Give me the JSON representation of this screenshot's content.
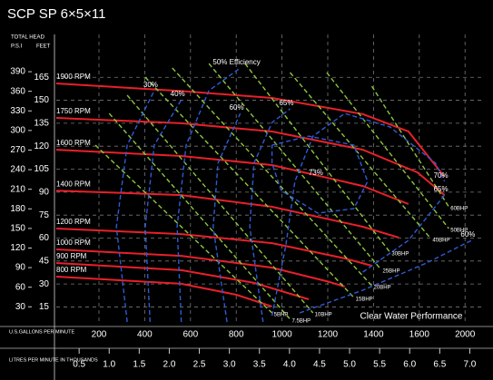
{
  "chart_data": {
    "type": "line",
    "title": "SCP SP 6×5×11",
    "y_header": "TOTAL HEAD",
    "y2_label": "P.S.I",
    "y_label": "FEET",
    "gpm_label": "U.S.GALLONS PER MINUTE",
    "x_label": "LITRES PER MINUTE IN THOUSANDS",
    "annotation": "Clear Water Performance",
    "gpm_ticks": [
      200,
      400,
      600,
      800,
      1000,
      1200,
      1400,
      1600,
      2000
    ],
    "xlim": [
      0.12,
      7.19
    ],
    "xticks": [
      0.5,
      {
        "value": 1,
        "label": "1.0"
      },
      1.5,
      {
        "value": 2,
        "label": "2.0"
      },
      2.5,
      {
        "value": 3,
        "label": "3.0"
      },
      3.5,
      {
        "value": 4,
        "label": "4.0"
      },
      4.5,
      {
        "value": 5,
        "label": "5.0"
      },
      5.5,
      {
        "value": 6,
        "label": "6.0"
      },
      6.5,
      {
        "value": 7,
        "label": "7.0"
      }
    ],
    "ylim": [
      4,
      193
    ],
    "yticks": [
      15,
      30,
      45,
      60,
      75,
      90,
      105,
      120,
      135,
      150,
      165
    ],
    "y2lim": [
      4,
      447
    ],
    "y2ticks": [
      30,
      60,
      90,
      120,
      150,
      180,
      210,
      240,
      270,
      300,
      330,
      360,
      390
    ],
    "grid": true,
    "series": [
      {
        "name": "1900 RPM",
        "color": "#e8202a",
        "style": "solid",
        "label_position": "start",
        "x": [
          0.12,
          2.2,
          3.71,
          5.22,
          5.98,
          6.58
        ],
        "values": [
          161,
          156,
          151.5,
          141,
          129.6,
          100
        ]
      },
      {
        "name": "1750 RPM",
        "color": "#e8202a",
        "style": "solid",
        "label_position": "start",
        "x": [
          0.12,
          2.2,
          3.71,
          5.22,
          6.13,
          6.58
        ],
        "values": [
          138.5,
          135,
          129.6,
          117.7,
          102.9,
          88.1
        ]
      },
      {
        "name": "1600 RPM",
        "color": "#e8202a",
        "style": "solid",
        "label_position": "start",
        "x": [
          0.12,
          2.2,
          3.71,
          5.22,
          5.98
        ],
        "values": [
          117.7,
          113.6,
          107.7,
          94,
          82.2
        ]
      },
      {
        "name": "1400 RPM",
        "color": "#e8202a",
        "style": "solid",
        "label_position": "start",
        "x": [
          0.12,
          2.2,
          3.71,
          5.22,
          5.82
        ],
        "values": [
          91,
          88.1,
          80.4,
          67.4,
          60.3
        ]
      },
      {
        "name": "1200 RPM",
        "color": "#e8202a",
        "style": "solid",
        "label_position": "start",
        "x": [
          0.12,
          2.2,
          3.71,
          4.92,
          5.37
        ],
        "values": [
          66.2,
          62.6,
          56.7,
          46.7,
          41.9
        ]
      },
      {
        "name": "1000 RPM",
        "color": "#e8202a",
        "style": "solid",
        "label_position": "start",
        "x": [
          0.12,
          2.2,
          3.71,
          4.62,
          4.92
        ],
        "values": [
          52.6,
          48.4,
          40.7,
          31.8,
          28.3
        ]
      },
      {
        "name": "900 RPM",
        "color": "#e8202a",
        "style": "solid",
        "label_position": "start",
        "x": [
          0.12,
          2.2,
          3.41,
          4.32
        ],
        "values": [
          43.7,
          39,
          30.7,
          20
        ]
      },
      {
        "name": "800 RPM",
        "color": "#e8202a",
        "style": "solid",
        "label_position": "start",
        "x": [
          0.12,
          2.2,
          3.11,
          3.71
        ],
        "values": [
          34.8,
          30.1,
          23,
          15.3
        ]
      },
      {
        "name": "5BHP",
        "color": "#8dc63f",
        "style": "dashed",
        "label_position": "end",
        "x": [
          0.77,
          3.71
        ],
        "values": [
          120.7,
          11.1
        ]
      },
      {
        "name": "7.5BHP",
        "color": "#8dc63f",
        "style": "dashed",
        "label_position": "end",
        "x": [
          1.0,
          4.01
        ],
        "values": [
          141.4,
          7.0
        ]
      },
      {
        "name": "10BHP",
        "color": "#8dc63f",
        "style": "dashed",
        "label_position": "end",
        "x": [
          1.3,
          4.39
        ],
        "values": [
          153.3,
          11.1
        ]
      },
      {
        "name": "15BHP",
        "color": "#8dc63f",
        "style": "dashed",
        "label_position": "end",
        "x": [
          1.6,
          5.07
        ],
        "values": [
          165.1,
          21.2
        ]
      },
      {
        "name": "20BHP",
        "color": "#8dc63f",
        "style": "dashed",
        "label_position": "end",
        "x": [
          2.05,
          5.37
        ],
        "values": [
          171.1,
          28.9
        ]
      },
      {
        "name": "25BHP",
        "color": "#8dc63f",
        "style": "dashed",
        "label_position": "end",
        "x": [
          2.66,
          5.52
        ],
        "values": [
          174,
          39.5
        ]
      },
      {
        "name": "30BHP",
        "color": "#8dc63f",
        "style": "dashed",
        "label_position": "end",
        "x": [
          3.26,
          5.67
        ],
        "values": [
          174,
          50.8
        ]
      },
      {
        "name": "40BHP",
        "color": "#8dc63f",
        "style": "dashed",
        "label_position": "end",
        "x": [
          4.01,
          6.35
        ],
        "values": [
          168.1,
          59.7
        ]
      },
      {
        "name": "50BHP",
        "color": "#8dc63f",
        "style": "dashed",
        "label_position": "end",
        "x": [
          4.62,
          6.65
        ],
        "values": [
          168.1,
          66.2
        ]
      },
      {
        "name": "60BHP",
        "color": "#8dc63f",
        "style": "dashed",
        "label_position": "end",
        "x": [
          5.37,
          6.65
        ],
        "values": [
          159.2,
          80.4
        ]
      },
      {
        "name": "30%",
        "color": "#2e5bd6",
        "style": "dashed",
        "label_position": "end",
        "x": [
          1.3,
          1.12,
          1.3,
          1.75
        ],
        "values": [
          5.2,
          67.4,
          120.7,
          156.3
        ]
      },
      {
        "name": "40%",
        "color": "#2e5bd6",
        "style": "dashed",
        "label_position": "end",
        "x": [
          1.68,
          1.6,
          1.75,
          2.2
        ],
        "values": [
          5.2,
          67.4,
          120.7,
          150.3
        ]
      },
      {
        "name": "50% Efficiency",
        "color": "#2e5bd6",
        "style": "dashed",
        "label_position": "end",
        "x": [
          2.2,
          2.13,
          2.28,
          2.66,
          3.18
        ],
        "values": [
          5.2,
          67.4,
          120.7,
          156.3,
          171.1
        ]
      },
      {
        "name": "60%",
        "color": "#2e5bd6",
        "style": "dashed",
        "label_position": "end",
        "x": [
          2.96,
          2.73,
          2.81,
          3.18,
          null,
          4.17,
          5.22,
          6.28,
          7.03
        ],
        "values": [
          5.2,
          67.4,
          108.9,
          141.4,
          null,
          11.1,
          25.9,
          43.7,
          58.5
        ]
      },
      {
        "name": "65%",
        "color": "#2e5bd6",
        "style": "dashed",
        "label_position": "end",
        "x": [
          3.56,
          3.34,
          3.41,
          3.71,
          4.01,
          null,
          5.22,
          5.98,
          6.58
        ],
        "values": [
          5.2,
          67.4,
          108.9,
          135.5,
          144.4,
          null,
          37.8,
          58.5,
          88.1
        ]
      },
      {
        "name": "70%",
        "color": "#2e5bd6",
        "style": "dashed",
        "label_position": "end",
        "x": [
          3.71,
          3.94,
          4.09,
          4.39,
          4.92,
          5.67,
          6.43,
          6.58
        ],
        "values": [
          9.3,
          55.5,
          97.0,
          126.6,
          141.4,
          132.6,
          108.9,
          97.0
        ]
      },
      {
        "name": "73%",
        "color": "#2e5bd6",
        "style": "dashed",
        "label_position": "center",
        "x": [
          3.71,
          4.32,
          5.07,
          5.3,
          5.07,
          4.47,
          3.86,
          3.71,
          3.71
        ],
        "values": [
          120.7,
          126.6,
          120.7,
          97.0,
          79.2,
          76.3,
          91.1,
          108.9,
          120.7
        ]
      }
    ]
  }
}
